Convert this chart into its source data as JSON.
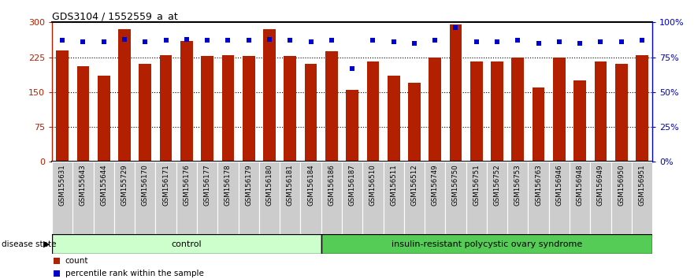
{
  "title": "GDS3104 / 1552559_a_at",
  "samples": [
    "GSM155631",
    "GSM155643",
    "GSM155644",
    "GSM155729",
    "GSM156170",
    "GSM156171",
    "GSM156176",
    "GSM156177",
    "GSM156178",
    "GSM156179",
    "GSM156180",
    "GSM156181",
    "GSM156184",
    "GSM156186",
    "GSM156187",
    "GSM156510",
    "GSM156511",
    "GSM156512",
    "GSM156749",
    "GSM156750",
    "GSM156751",
    "GSM156752",
    "GSM156753",
    "GSM156763",
    "GSM156946",
    "GSM156948",
    "GSM156949",
    "GSM156950",
    "GSM156951"
  ],
  "counts": [
    240,
    205,
    185,
    285,
    210,
    230,
    260,
    228,
    230,
    228,
    285,
    228,
    210,
    238,
    155,
    215,
    185,
    170,
    225,
    295,
    215,
    215,
    225,
    160,
    225,
    175,
    215,
    210,
    230
  ],
  "percentiles": [
    87,
    86,
    86,
    88,
    86,
    87,
    88,
    87,
    87,
    87,
    88,
    87,
    86,
    87,
    67,
    87,
    86,
    85,
    87,
    96,
    86,
    86,
    87,
    85,
    86,
    85,
    86,
    86,
    87
  ],
  "control_count": 13,
  "disease_label": "insulin-resistant polycystic ovary syndrome",
  "control_label": "control",
  "bar_color": "#B22000",
  "percentile_color": "#0000CC",
  "ylim_left": [
    0,
    300
  ],
  "ylim_right": [
    0,
    100
  ],
  "yticks_left": [
    0,
    75,
    150,
    225,
    300
  ],
  "yticks_right": [
    0,
    25,
    50,
    75,
    100
  ],
  "bar_width": 0.6,
  "control_bg": "#ccffcc",
  "disease_bg": "#55cc55",
  "sample_box_bg": "#cccccc",
  "sample_box_edge": "#ffffff"
}
